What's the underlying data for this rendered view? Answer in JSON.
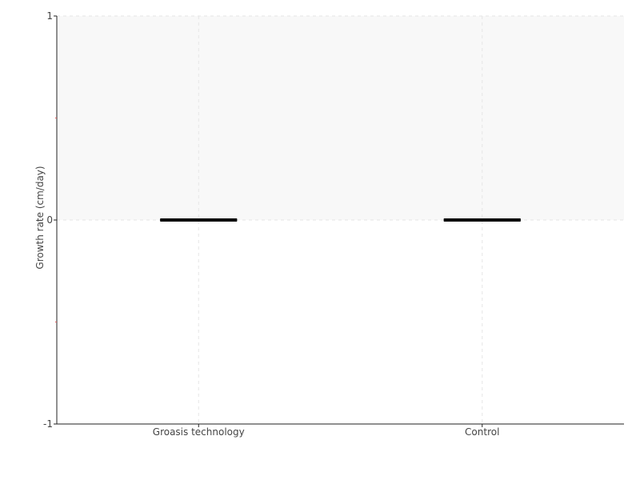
{
  "chart_data": {
    "type": "box",
    "title": "",
    "xlabel": "",
    "ylabel": "Growth rate (cm/day)",
    "ylim": [
      -1,
      1
    ],
    "yticks": [
      "1",
      "0",
      "-1"
    ],
    "minor_yticks": [
      0.5,
      -0.5
    ],
    "grid": true,
    "categories": [
      "Groasis technology",
      "Control"
    ],
    "series": [
      {
        "values": [
          {
            "min": 0,
            "q1": 0,
            "median": 0,
            "q3": 0,
            "max": 0
          },
          {
            "min": 0,
            "q1": 0,
            "median": 0,
            "q3": 0,
            "max": 0
          }
        ]
      }
    ],
    "colors": {
      "box": "#000000",
      "axis": "#222222",
      "grid": "#e6e6e6",
      "band": "#f8f8f8",
      "minor_tick": "#e06060"
    }
  }
}
